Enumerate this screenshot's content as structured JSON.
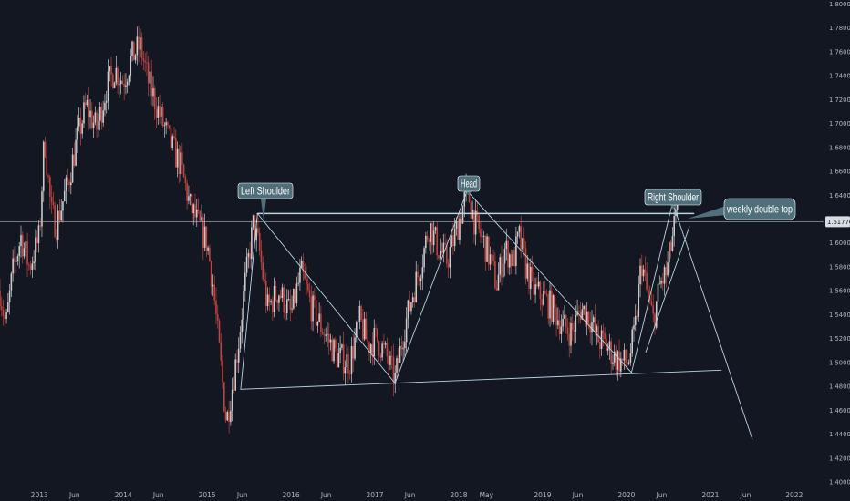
{
  "chart_data": {
    "type": "candlestick",
    "colors": {
      "background": "#131722",
      "up": "#c9c9c9",
      "down": "#c2443f",
      "pattern_line": "#b7d5e0",
      "callout_bg": "#4f6f7a",
      "axis_text": "#b2b5be",
      "price_tag_bg": "#d8dde3",
      "price_tag_text": "#131722"
    },
    "x_axis": {
      "ticks": [
        "2013",
        "Jun",
        "2014",
        "Jun",
        "2015",
        "Jun",
        "2016",
        "Jun",
        "2017",
        "Jun",
        "2018",
        "May",
        "2019",
        "Jun",
        "2020",
        "Jun",
        "2021",
        "Jun",
        "2022"
      ],
      "tick_values": [
        2013.0,
        2013.42,
        2014.0,
        2014.42,
        2015.0,
        2015.42,
        2016.0,
        2016.42,
        2017.0,
        2017.42,
        2018.0,
        2018.33,
        2019.0,
        2019.42,
        2020.0,
        2020.42,
        2021.0,
        2021.42,
        2022.0
      ],
      "range": [
        2012.53,
        2022.35
      ]
    },
    "y_axis": {
      "ticks": [
        "1.80000",
        "1.78000",
        "1.76000",
        "1.74000",
        "1.72000",
        "1.70000",
        "1.68000",
        "1.66000",
        "1.64000",
        "1.62000",
        "1.60000",
        "1.58000",
        "1.56000",
        "1.54000",
        "1.52000",
        "1.50000",
        "1.48000",
        "1.46000",
        "1.44000",
        "1.42000",
        "1.40000"
      ],
      "tick_values": [
        1.8,
        1.78,
        1.76,
        1.74,
        1.72,
        1.7,
        1.68,
        1.66,
        1.64,
        1.62,
        1.6,
        1.58,
        1.56,
        1.54,
        1.52,
        1.5,
        1.48,
        1.46,
        1.44,
        1.42,
        1.4
      ],
      "range": [
        1.3954,
        1.8033
      ],
      "current_price_label": "1.61776",
      "current_price": 1.61776
    },
    "price_path": [
      [
        2012.53,
        1.56
      ],
      [
        2012.6,
        1.53
      ],
      [
        2012.68,
        1.575
      ],
      [
        2012.78,
        1.605
      ],
      [
        2012.88,
        1.58
      ],
      [
        2013.0,
        1.605
      ],
      [
        2013.06,
        1.69
      ],
      [
        2013.14,
        1.625
      ],
      [
        2013.2,
        1.615
      ],
      [
        2013.28,
        1.635
      ],
      [
        2013.34,
        1.65
      ],
      [
        2013.46,
        1.69
      ],
      [
        2013.56,
        1.715
      ],
      [
        2013.68,
        1.695
      ],
      [
        2013.8,
        1.73
      ],
      [
        2013.9,
        1.745
      ],
      [
        2014.0,
        1.735
      ],
      [
        2014.1,
        1.755
      ],
      [
        2014.2,
        1.765
      ],
      [
        2014.3,
        1.735
      ],
      [
        2014.42,
        1.71
      ],
      [
        2014.55,
        1.685
      ],
      [
        2014.68,
        1.665
      ],
      [
        2014.8,
        1.63
      ],
      [
        2014.9,
        1.615
      ],
      [
        2015.0,
        1.6
      ],
      [
        2015.07,
        1.565
      ],
      [
        2015.13,
        1.52
      ],
      [
        2015.18,
        1.485
      ],
      [
        2015.23,
        1.45
      ],
      [
        2015.3,
        1.48
      ],
      [
        2015.38,
        1.52
      ],
      [
        2015.45,
        1.565
      ],
      [
        2015.55,
        1.615
      ],
      [
        2015.62,
        1.595
      ],
      [
        2015.72,
        1.545
      ],
      [
        2015.85,
        1.56
      ],
      [
        2016.0,
        1.54
      ],
      [
        2016.12,
        1.575
      ],
      [
        2016.25,
        1.545
      ],
      [
        2016.4,
        1.525
      ],
      [
        2016.55,
        1.505
      ],
      [
        2016.7,
        1.5
      ],
      [
        2016.82,
        1.535
      ],
      [
        2016.92,
        1.515
      ],
      [
        2017.02,
        1.52
      ],
      [
        2017.14,
        1.505
      ],
      [
        2017.24,
        1.485
      ],
      [
        2017.34,
        1.525
      ],
      [
        2017.46,
        1.56
      ],
      [
        2017.56,
        1.585
      ],
      [
        2017.65,
        1.615
      ],
      [
        2017.76,
        1.595
      ],
      [
        2017.86,
        1.585
      ],
      [
        2017.95,
        1.605
      ],
      [
        2018.05,
        1.63
      ],
      [
        2018.1,
        1.645
      ],
      [
        2018.2,
        1.615
      ],
      [
        2018.3,
        1.6
      ],
      [
        2018.38,
        1.585
      ],
      [
        2018.45,
        1.565
      ],
      [
        2018.55,
        1.595
      ],
      [
        2018.65,
        1.585
      ],
      [
        2018.72,
        1.605
      ],
      [
        2018.8,
        1.58
      ],
      [
        2018.9,
        1.56
      ],
      [
        2019.0,
        1.555
      ],
      [
        2019.12,
        1.545
      ],
      [
        2019.25,
        1.53
      ],
      [
        2019.35,
        1.525
      ],
      [
        2019.45,
        1.545
      ],
      [
        2019.55,
        1.54
      ],
      [
        2019.65,
        1.52
      ],
      [
        2019.75,
        1.515
      ],
      [
        2019.85,
        1.505
      ],
      [
        2019.95,
        1.5
      ],
      [
        2020.02,
        1.5
      ],
      [
        2020.1,
        1.525
      ],
      [
        2020.18,
        1.585
      ],
      [
        2020.25,
        1.555
      ],
      [
        2020.32,
        1.535
      ],
      [
        2020.4,
        1.565
      ],
      [
        2020.48,
        1.575
      ],
      [
        2020.55,
        1.605
      ],
      [
        2020.6,
        1.625
      ],
      [
        2020.63,
        1.631
      ]
    ],
    "pattern_lines": [
      [
        [
          2015.6,
          1.6246
        ],
        [
          2020.8,
          1.6246
        ]
      ],
      [
        [
          2015.4,
          1.4775
        ],
        [
          2021.13,
          1.4935
        ]
      ],
      [
        [
          2015.4,
          1.4775
        ],
        [
          2015.6,
          1.6246
        ]
      ],
      [
        [
          2015.6,
          1.6246
        ],
        [
          2017.24,
          1.4825
        ]
      ],
      [
        [
          2017.24,
          1.4825
        ],
        [
          2018.1,
          1.6436
        ]
      ],
      [
        [
          2018.1,
          1.6436
        ],
        [
          2020.06,
          1.4915
        ]
      ],
      [
        [
          2020.06,
          1.4915
        ],
        [
          2020.55,
          1.6336
        ]
      ],
      [
        [
          2020.55,
          1.6336
        ],
        [
          2021.5,
          1.4358
        ]
      ],
      [
        [
          2020.23,
          1.5085
        ],
        [
          2020.75,
          1.6136
        ]
      ]
    ],
    "annotations": [
      {
        "text": "Left Shoulder",
        "x": 2015.6,
        "y": 1.6246
      },
      {
        "text": "Head",
        "x": 2018.1,
        "y": 1.6436
      },
      {
        "text": "Right Shoulder",
        "x": 2020.55,
        "y": 1.6336
      },
      {
        "text": "weekly double top",
        "x": 2020.63,
        "y": 1.631
      }
    ]
  }
}
